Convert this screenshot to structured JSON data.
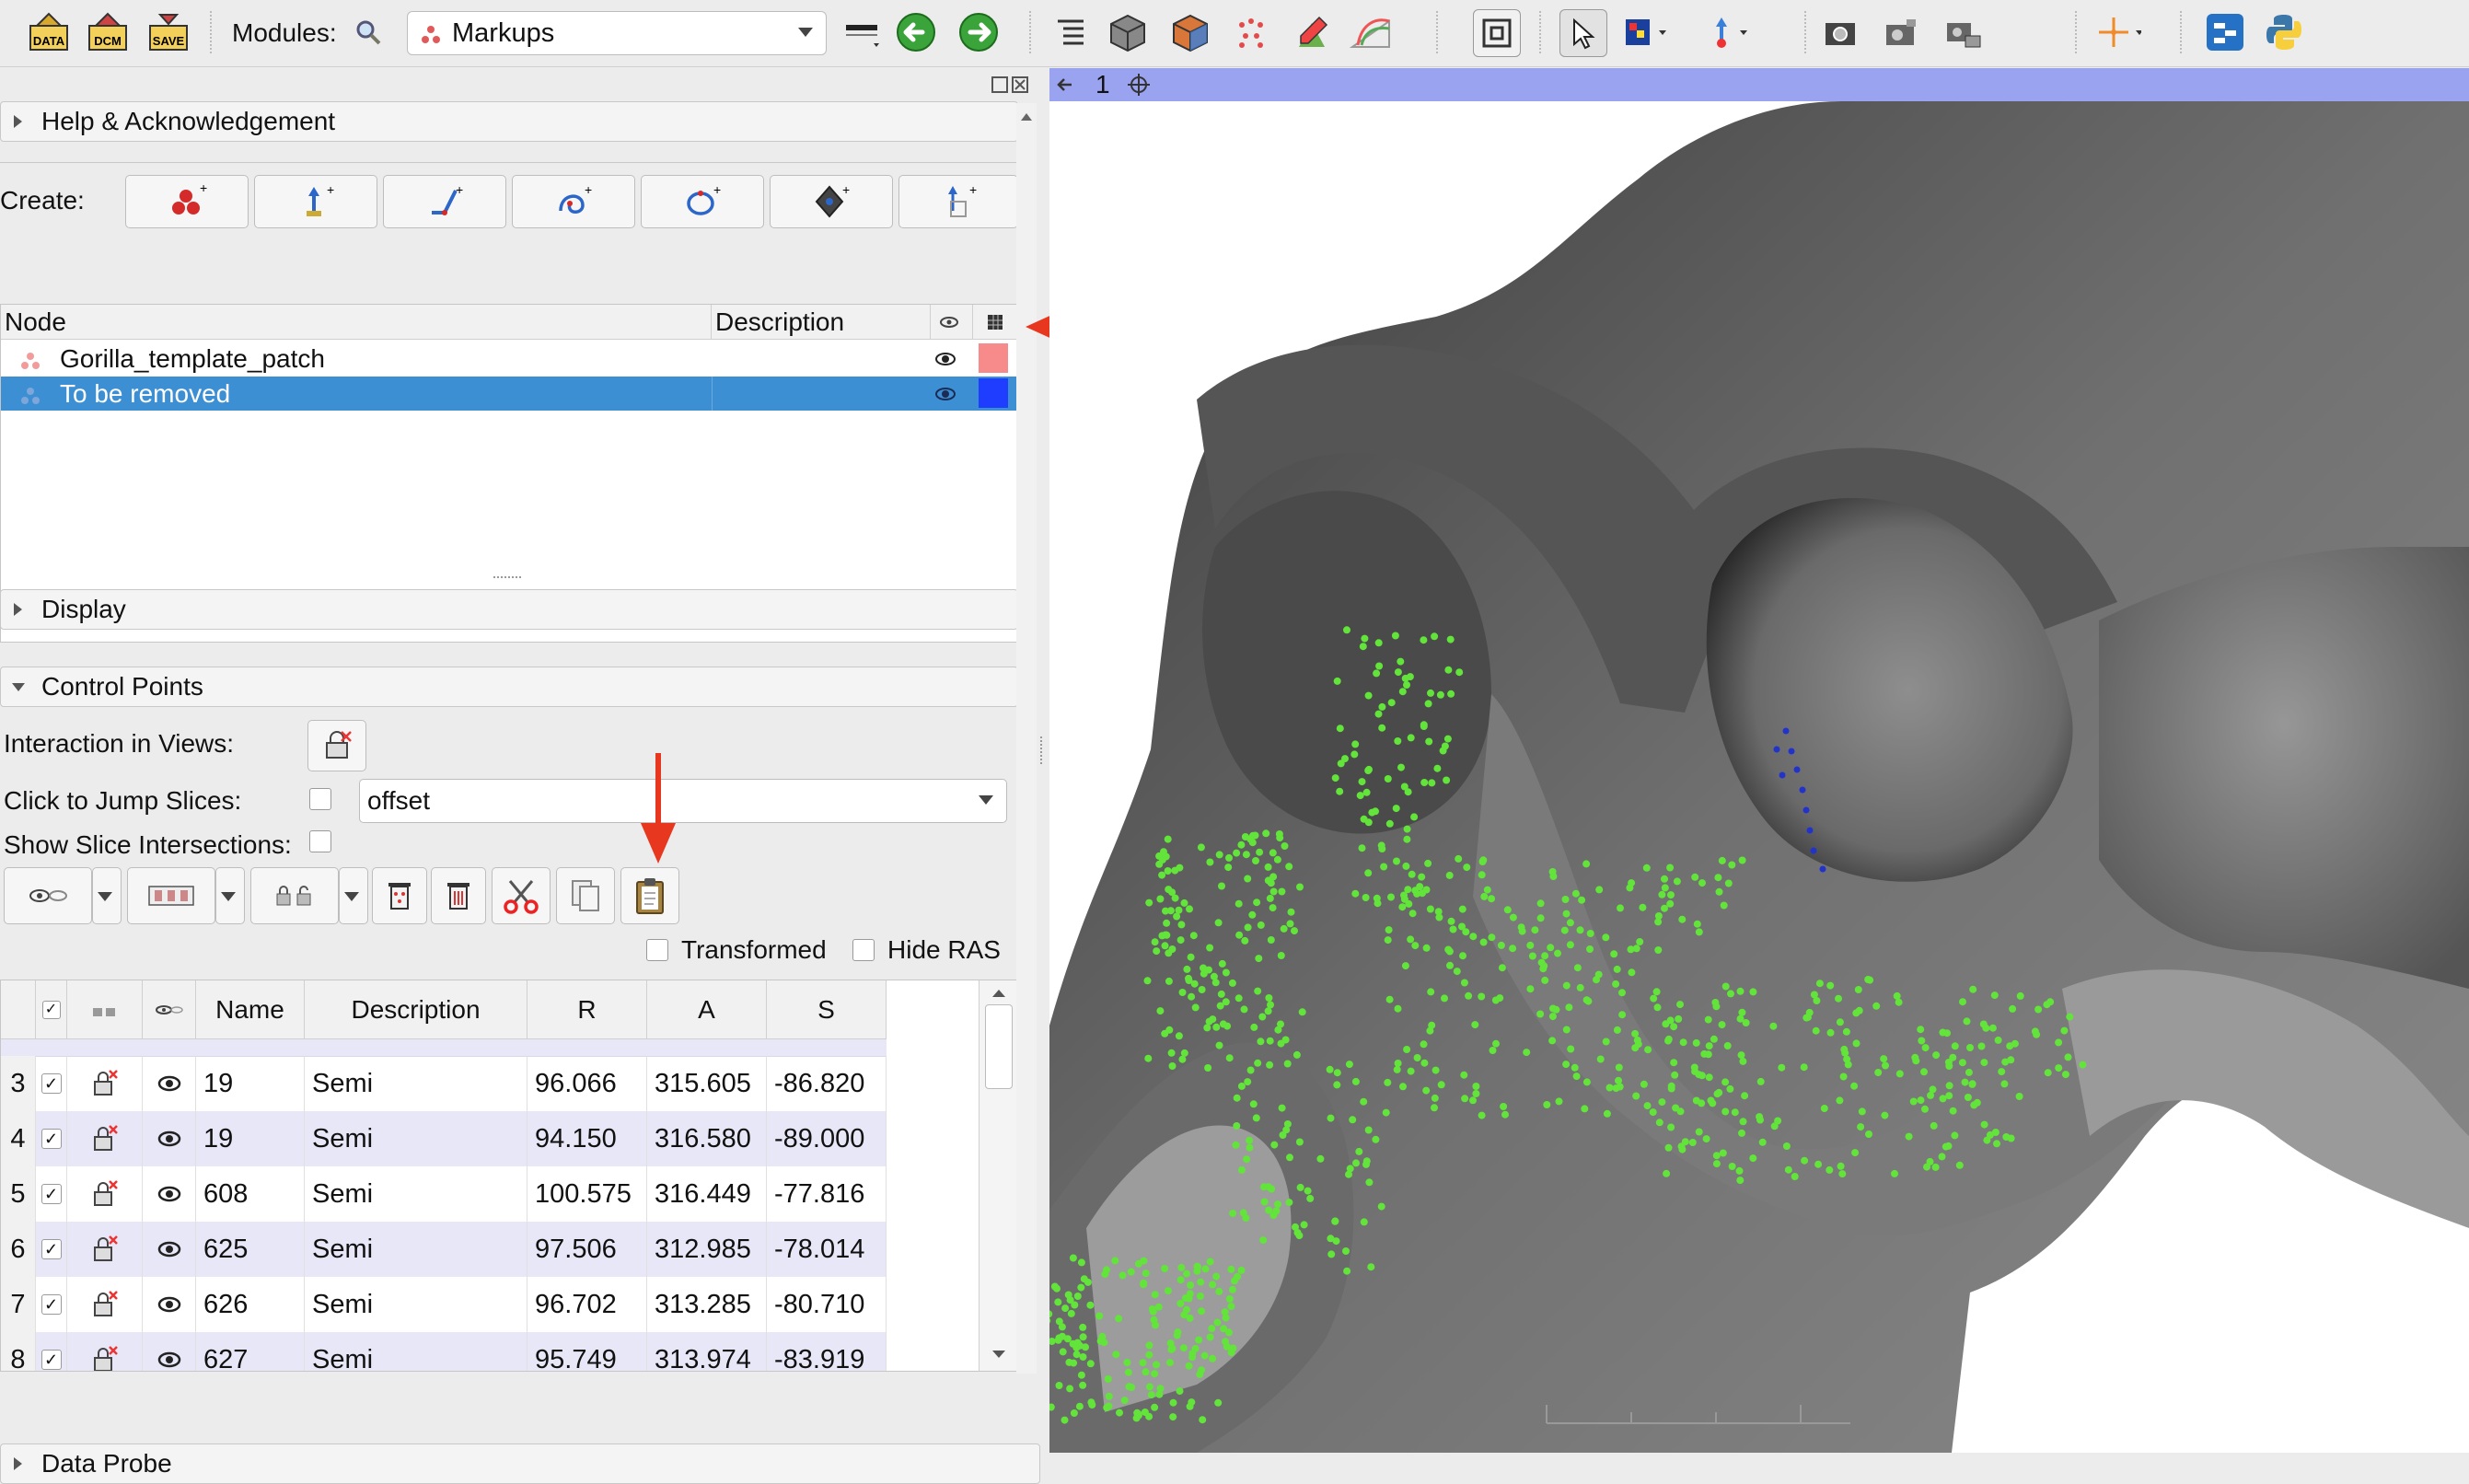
{
  "toolbar": {
    "modules_label": "Modules:",
    "module_selected": "Markups",
    "icons": [
      "data-icon",
      "dcm-icon",
      "save-icon",
      "search-icon",
      "markups-icon",
      "layout-icon",
      "back-arrow-icon",
      "forward-arrow-icon",
      "module-list-icon",
      "volume-cube-icon",
      "model-cube-icon",
      "markups-points-icon",
      "segment-editor-icon",
      "sequence-icon",
      "crosshair-box-icon",
      "pointer-icon",
      "place-markup-icon",
      "curve-place-icon",
      "screenshot-icon",
      "scene-views-icon",
      "capture-icon",
      "crosshair-icon",
      "extension-icon",
      "python-icon"
    ],
    "icon_labels": {
      "data": "DATA",
      "dcm": "DCM",
      "save": "SAVE"
    }
  },
  "sections": {
    "help": "Help & Acknowledgement",
    "display": "Display",
    "control_points": "Control Points",
    "data_probe": "Data Probe"
  },
  "create": {
    "label": "Create:"
  },
  "node_table": {
    "headers": {
      "node": "Node",
      "description": "Description"
    },
    "rows": [
      {
        "name": "Gorilla_template_patch",
        "color": "#f78a8a",
        "selected": false
      },
      {
        "name": "To be removed",
        "color": "#1f3dff",
        "selected": true
      }
    ]
  },
  "control_points": {
    "interaction_label": "Interaction in Views:",
    "jump_label": "Click to Jump Slices:",
    "jump_value": "offset",
    "slice_label": "Show Slice Intersections:",
    "transformed_label": "Transformed",
    "hide_ras_label": "Hide RAS",
    "table": {
      "headers": {
        "name": "Name",
        "description": "Description",
        "r": "R",
        "a": "A",
        "s": "S"
      },
      "rows": [
        {
          "idx": "3",
          "name": "19",
          "desc": "Semi",
          "r": "96.066",
          "a": "315.605",
          "s": "-86.820"
        },
        {
          "idx": "4",
          "name": "19",
          "desc": "Semi",
          "r": "94.150",
          "a": "316.580",
          "s": "-89.000"
        },
        {
          "idx": "5",
          "name": "608",
          "desc": "Semi",
          "r": "100.575",
          "a": "316.449",
          "s": "-77.816"
        },
        {
          "idx": "6",
          "name": "625",
          "desc": "Semi",
          "r": "97.506",
          "a": "312.985",
          "s": "-78.014"
        },
        {
          "idx": "7",
          "name": "626",
          "desc": "Semi",
          "r": "96.702",
          "a": "313.285",
          "s": "-80.710"
        },
        {
          "idx": "8",
          "name": "627",
          "desc": "Semi",
          "r": "95.749",
          "a": "313.974",
          "s": "-83.919"
        }
      ]
    }
  },
  "viewer": {
    "view_number": "1"
  },
  "colors": {
    "accent_arrow": "#e8371f",
    "selection": "#3d8fd4",
    "points": "#62e43a"
  }
}
